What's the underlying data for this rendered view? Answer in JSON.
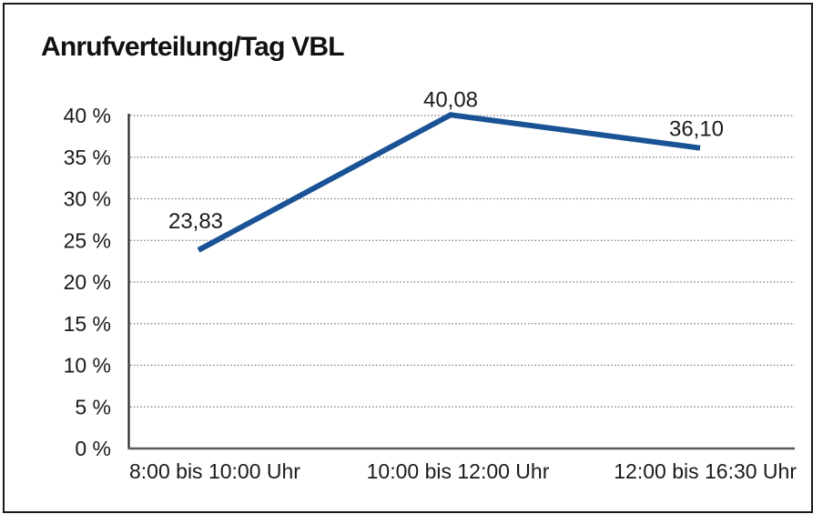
{
  "frame": {
    "border_color": "#1a1a1a",
    "background": "#ffffff"
  },
  "chart_data": {
    "type": "line",
    "title": "Anrufverteilung/Tag VBL",
    "categories": [
      "8:00 bis 10:00 Uhr",
      "10:00 bis 12:00 Uhr",
      "12:00 bis 16:30 Uhr"
    ],
    "values": [
      23.83,
      40.08,
      36.1
    ],
    "point_labels": [
      "23,83",
      "40,08",
      "36,10"
    ],
    "series_name": "Anrufverteilung/Tag VBL",
    "xlabel": "",
    "ylabel": "",
    "ylim": [
      0,
      40
    ],
    "ytick_step": 5,
    "ytick_values": [
      0,
      5,
      10,
      15,
      20,
      25,
      30,
      35,
      40
    ],
    "ytick_labels": [
      "0 %",
      "5 %",
      "10 %",
      "15 %",
      "20 %",
      "25 %",
      "30 %",
      "35 %",
      "40 %"
    ],
    "grid": "horizontal-dotted",
    "legend": "none",
    "line_color": "#1A5296",
    "text_color": "#1a1a1a",
    "gridline_color": "#777777",
    "x_axis_color": "#5a5a5a",
    "y_axis_color": "#262626"
  }
}
